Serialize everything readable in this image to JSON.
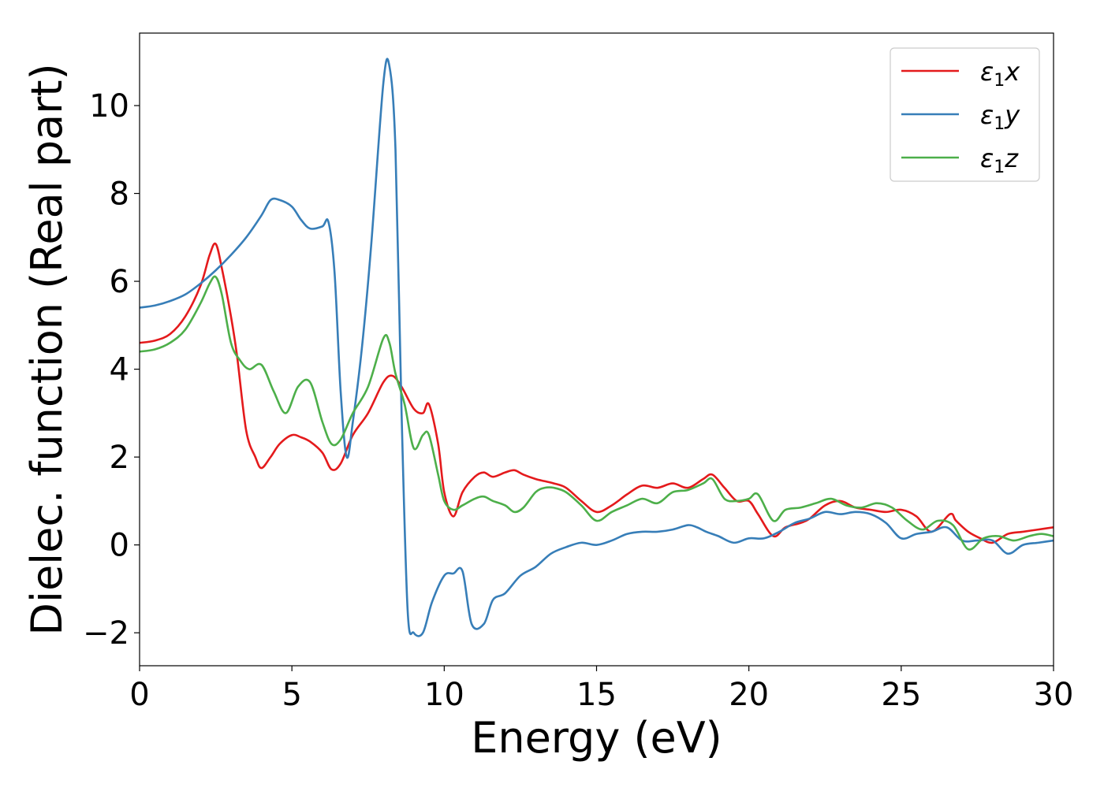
{
  "chart_data": {
    "type": "line",
    "title": "",
    "xlabel": "Energy (eV)",
    "ylabel": "Dielec. function (Real part)",
    "xlim": [
      0,
      30
    ],
    "ylim": [
      -2.75,
      11.65
    ],
    "xticks": [
      0,
      5,
      10,
      15,
      20,
      25,
      30
    ],
    "xtick_labels": [
      "0",
      "5",
      "10",
      "15",
      "20",
      "25",
      "30"
    ],
    "yticks": [
      -2,
      0,
      2,
      4,
      6,
      8,
      10
    ],
    "ytick_labels": [
      "−2",
      "0",
      "2",
      "4",
      "6",
      "8",
      "10"
    ],
    "grid": false,
    "legend_position": "top-right",
    "series": [
      {
        "name": "ε1x",
        "legend_symbol": "ε",
        "legend_sub": "1",
        "legend_var": "x",
        "color": "#e41a1c",
        "x": [
          0,
          0.5,
          1,
          1.5,
          2,
          2.3,
          2.5,
          2.7,
          3,
          3.2,
          3.5,
          3.8,
          4,
          4.3,
          4.6,
          5,
          5.3,
          5.6,
          6,
          6.3,
          6.6,
          7,
          7.5,
          8,
          8.3,
          8.6,
          9,
          9.3,
          9.5,
          9.8,
          10,
          10.3,
          10.6,
          11,
          11.3,
          11.6,
          12,
          12.3,
          12.6,
          13,
          13.3,
          13.6,
          14,
          14.5,
          15,
          15.5,
          16,
          16.5,
          17,
          17.5,
          18,
          18.5,
          18.8,
          19.2,
          19.6,
          20,
          20.3,
          20.8,
          21.2,
          21.7,
          22,
          22.5,
          23,
          23.5,
          24,
          24.5,
          25,
          25.5,
          26,
          26.6,
          26.8,
          27.2,
          27.6,
          28,
          28.5,
          29,
          29.5,
          30
        ],
        "y": [
          4.6,
          4.65,
          4.8,
          5.2,
          5.9,
          6.6,
          6.85,
          6.3,
          5.2,
          4.3,
          2.6,
          2.0,
          1.75,
          2.0,
          2.3,
          2.5,
          2.45,
          2.35,
          2.1,
          1.72,
          1.85,
          2.5,
          3.0,
          3.7,
          3.85,
          3.6,
          3.1,
          3.0,
          3.2,
          2.3,
          1.2,
          0.65,
          1.2,
          1.55,
          1.65,
          1.55,
          1.65,
          1.7,
          1.6,
          1.5,
          1.45,
          1.4,
          1.3,
          1.0,
          0.75,
          0.9,
          1.15,
          1.35,
          1.3,
          1.4,
          1.3,
          1.5,
          1.6,
          1.3,
          1.0,
          1.0,
          0.7,
          0.2,
          0.4,
          0.5,
          0.6,
          0.9,
          1.0,
          0.85,
          0.8,
          0.75,
          0.8,
          0.65,
          0.3,
          0.7,
          0.55,
          0.3,
          0.15,
          0.05,
          0.25,
          0.3,
          0.35,
          0.4
        ]
      },
      {
        "name": "ε1y",
        "legend_symbol": "ε",
        "legend_sub": "1",
        "legend_var": "y",
        "color": "#377eb8",
        "x": [
          0,
          0.5,
          1,
          1.5,
          2,
          2.5,
          3,
          3.5,
          4,
          4.3,
          4.6,
          5,
          5.3,
          5.6,
          6,
          6.2,
          6.4,
          6.6,
          6.8,
          7,
          7.3,
          7.6,
          8,
          8.2,
          8.4,
          8.6,
          8.8,
          9,
          9.3,
          9.6,
          10,
          10.3,
          10.6,
          10.9,
          11.3,
          11.6,
          12,
          12.5,
          13,
          13.5,
          14,
          14.5,
          15,
          15.5,
          16,
          16.5,
          17,
          17.5,
          18,
          18.3,
          18.6,
          19,
          19.5,
          20,
          20.5,
          21,
          21.5,
          22,
          22.5,
          23,
          23.5,
          24,
          24.5,
          25,
          25.5,
          26,
          26.5,
          27,
          27.5,
          28,
          28.5,
          29,
          29.5,
          30
        ],
        "y": [
          5.4,
          5.45,
          5.55,
          5.7,
          5.95,
          6.25,
          6.6,
          7.0,
          7.5,
          7.85,
          7.85,
          7.7,
          7.4,
          7.2,
          7.25,
          7.35,
          6.2,
          3.5,
          2.0,
          2.8,
          4.5,
          6.8,
          10.5,
          10.9,
          9.0,
          3.0,
          -1.5,
          -2.0,
          -2.0,
          -1.3,
          -0.7,
          -0.65,
          -0.6,
          -1.8,
          -1.8,
          -1.25,
          -1.1,
          -0.7,
          -0.5,
          -0.2,
          -0.05,
          0.05,
          0.0,
          0.1,
          0.25,
          0.3,
          0.3,
          0.35,
          0.45,
          0.4,
          0.3,
          0.2,
          0.05,
          0.15,
          0.15,
          0.3,
          0.5,
          0.6,
          0.75,
          0.7,
          0.75,
          0.7,
          0.5,
          0.15,
          0.25,
          0.3,
          0.4,
          0.1,
          0.1,
          0.1,
          -0.2,
          0.0,
          0.05,
          0.1
        ]
      },
      {
        "name": "ε1z",
        "legend_symbol": "ε",
        "legend_sub": "1",
        "legend_var": "z",
        "color": "#4daf4a",
        "x": [
          0,
          0.5,
          1,
          1.5,
          2,
          2.3,
          2.5,
          2.7,
          3,
          3.3,
          3.6,
          4,
          4.4,
          4.8,
          5.2,
          5.6,
          6,
          6.3,
          6.6,
          7,
          7.5,
          8,
          8.2,
          8.4,
          8.7,
          9,
          9.3,
          9.5,
          9.8,
          10,
          10.3,
          10.6,
          11,
          11.3,
          11.6,
          12,
          12.3,
          12.6,
          13,
          13.3,
          13.6,
          14,
          14.5,
          15,
          15.5,
          16,
          16.5,
          17,
          17.5,
          18,
          18.5,
          18.8,
          19.2,
          19.6,
          20,
          20.3,
          20.8,
          21.2,
          21.7,
          22.2,
          22.7,
          23.2,
          23.7,
          24.2,
          24.7,
          25.2,
          25.7,
          26.2,
          26.7,
          27.2,
          27.7,
          28.2,
          28.7,
          29.2,
          29.6,
          30
        ],
        "y": [
          4.4,
          4.45,
          4.6,
          4.9,
          5.5,
          5.95,
          6.1,
          5.7,
          4.6,
          4.2,
          4.0,
          4.1,
          3.5,
          3.0,
          3.6,
          3.7,
          2.8,
          2.3,
          2.4,
          3.0,
          3.6,
          4.7,
          4.6,
          3.9,
          3.2,
          2.2,
          2.5,
          2.5,
          1.6,
          1.0,
          0.8,
          0.9,
          1.05,
          1.1,
          1.0,
          0.9,
          0.75,
          0.85,
          1.2,
          1.3,
          1.3,
          1.2,
          0.9,
          0.55,
          0.75,
          0.9,
          1.05,
          0.95,
          1.2,
          1.25,
          1.4,
          1.5,
          1.05,
          1.0,
          1.05,
          1.15,
          0.55,
          0.8,
          0.85,
          0.95,
          1.05,
          0.9,
          0.85,
          0.95,
          0.85,
          0.55,
          0.35,
          0.55,
          0.45,
          -0.1,
          0.15,
          0.2,
          0.1,
          0.2,
          0.25,
          0.2
        ]
      }
    ]
  }
}
